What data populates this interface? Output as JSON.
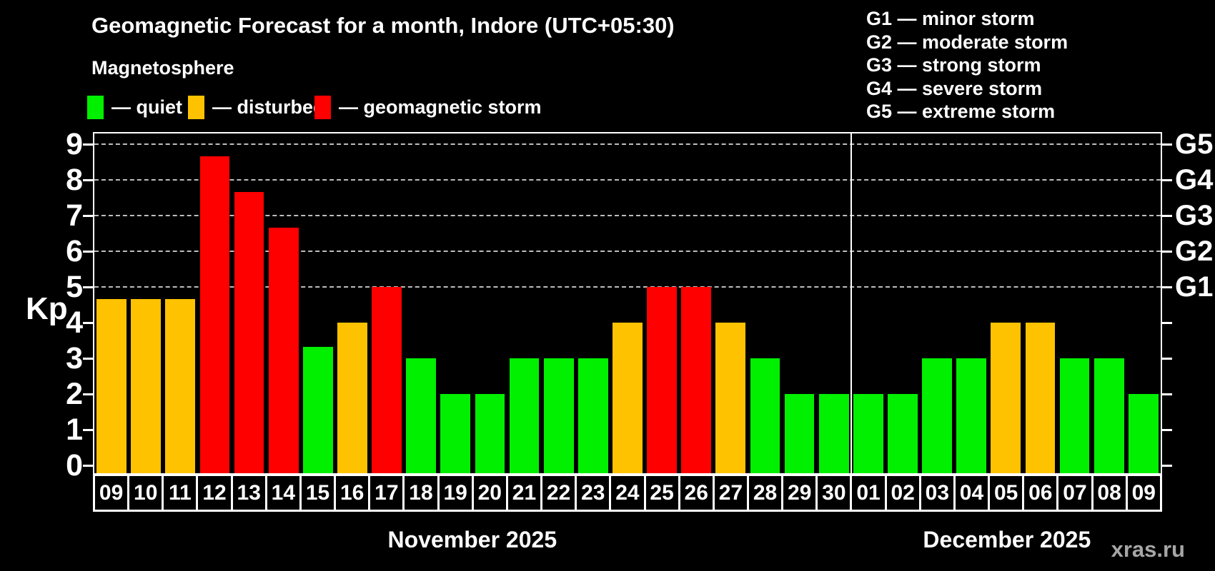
{
  "title": "Geomagnetic Forecast for a month, Indore (UTC+05:30)",
  "subtitle": "Magnetosphere",
  "legend": {
    "items": [
      {
        "label": "— quiet",
        "color": "#00f000"
      },
      {
        "label": "— disturbed",
        "color": "#ffc200"
      },
      {
        "label": "— geomagnetic storm",
        "color": "#ff0000"
      }
    ]
  },
  "g_legend": {
    "items": [
      "G1 — minor storm",
      "G2 — moderate storm",
      "G3 — strong storm",
      "G4 — severe storm",
      "G5 — extreme storm"
    ]
  },
  "watermark": "xras.ru",
  "chart_data": {
    "type": "bar",
    "title": "Geomagnetic Forecast for a month, Indore (UTC+05:30)",
    "ylabel": "Kp",
    "ylim": [
      0,
      9
    ],
    "yticks": [
      0,
      1,
      2,
      3,
      4,
      5,
      6,
      7,
      8,
      9
    ],
    "grid_levels": [
      5,
      6,
      7,
      8,
      9
    ],
    "grid": "dashed horizontal lines at Kp 5-9 only",
    "legend_position": "top-left",
    "right_axis": [
      {
        "kp": 5,
        "label": "G1"
      },
      {
        "kp": 6,
        "label": "G2"
      },
      {
        "kp": 7,
        "label": "G3"
      },
      {
        "kp": 8,
        "label": "G4"
      },
      {
        "kp": 9,
        "label": "G5"
      }
    ],
    "level_colors": {
      "quiet": "#00f000",
      "disturbed": "#ffc200",
      "storm": "#ff0000"
    },
    "months": [
      {
        "label": "November 2025",
        "days": 22
      },
      {
        "label": "December 2025",
        "days": 9
      }
    ],
    "bars": [
      {
        "day": "09",
        "month": "November 2025",
        "value": 4.67,
        "level": "disturbed"
      },
      {
        "day": "10",
        "month": "November 2025",
        "value": 4.67,
        "level": "disturbed"
      },
      {
        "day": "11",
        "month": "November 2025",
        "value": 4.67,
        "level": "disturbed"
      },
      {
        "day": "12",
        "month": "November 2025",
        "value": 8.67,
        "level": "storm"
      },
      {
        "day": "13",
        "month": "November 2025",
        "value": 7.67,
        "level": "storm"
      },
      {
        "day": "14",
        "month": "November 2025",
        "value": 6.67,
        "level": "storm"
      },
      {
        "day": "15",
        "month": "November 2025",
        "value": 3.33,
        "level": "quiet"
      },
      {
        "day": "16",
        "month": "November 2025",
        "value": 4,
        "level": "disturbed"
      },
      {
        "day": "17",
        "month": "November 2025",
        "value": 5,
        "level": "storm"
      },
      {
        "day": "18",
        "month": "November 2025",
        "value": 3,
        "level": "quiet"
      },
      {
        "day": "19",
        "month": "November 2025",
        "value": 2,
        "level": "quiet"
      },
      {
        "day": "20",
        "month": "November 2025",
        "value": 2,
        "level": "quiet"
      },
      {
        "day": "21",
        "month": "November 2025",
        "value": 3,
        "level": "quiet"
      },
      {
        "day": "22",
        "month": "November 2025",
        "value": 3,
        "level": "quiet"
      },
      {
        "day": "23",
        "month": "November 2025",
        "value": 3,
        "level": "quiet"
      },
      {
        "day": "24",
        "month": "November 2025",
        "value": 4,
        "level": "disturbed"
      },
      {
        "day": "25",
        "month": "November 2025",
        "value": 5,
        "level": "storm"
      },
      {
        "day": "26",
        "month": "November 2025",
        "value": 5,
        "level": "storm"
      },
      {
        "day": "27",
        "month": "November 2025",
        "value": 4,
        "level": "disturbed"
      },
      {
        "day": "28",
        "month": "November 2025",
        "value": 3,
        "level": "quiet"
      },
      {
        "day": "29",
        "month": "November 2025",
        "value": 2,
        "level": "quiet"
      },
      {
        "day": "30",
        "month": "November 2025",
        "value": 2,
        "level": "quiet"
      },
      {
        "day": "01",
        "month": "December 2025",
        "value": 2,
        "level": "quiet"
      },
      {
        "day": "02",
        "month": "December 2025",
        "value": 2,
        "level": "quiet"
      },
      {
        "day": "03",
        "month": "December 2025",
        "value": 3,
        "level": "quiet"
      },
      {
        "day": "04",
        "month": "December 2025",
        "value": 3,
        "level": "quiet"
      },
      {
        "day": "05",
        "month": "December 2025",
        "value": 4,
        "level": "disturbed"
      },
      {
        "day": "06",
        "month": "December 2025",
        "value": 4,
        "level": "disturbed"
      },
      {
        "day": "07",
        "month": "December 2025",
        "value": 3,
        "level": "quiet"
      },
      {
        "day": "08",
        "month": "December 2025",
        "value": 3,
        "level": "quiet"
      },
      {
        "day": "09",
        "month": "December 2025",
        "value": 2,
        "level": "quiet"
      }
    ]
  }
}
